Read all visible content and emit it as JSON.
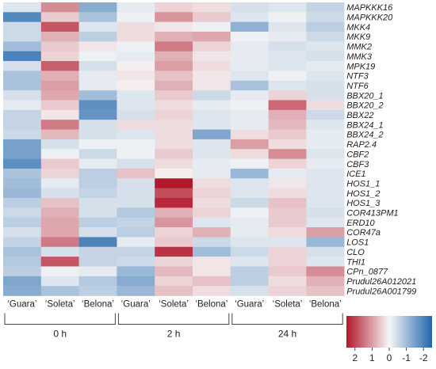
{
  "chart_data": {
    "type": "heatmap",
    "rows": [
      "MAPKKK16",
      "MAPKKK20",
      "MKK4",
      "MKK9",
      "MMK2",
      "MMK3",
      "MPK19",
      "NTF3",
      "NTF6",
      "BBX20_1",
      "BBX20_2",
      "BBX22",
      "BBX24_1",
      "BBX24_2",
      "RAP2.4",
      "CBF2",
      "CBF3",
      "ICE1",
      "HOS1_1",
      "HOS1_2",
      "HOS1_3",
      "COR413PM1",
      "ERD10",
      "COR47a",
      "LOS1",
      "CLO",
      "THI1",
      "CPn_0877",
      "Prudul26A012021",
      "Prudul26A001799"
    ],
    "columns": [
      "‘Guara’",
      "‘Soleta’",
      "‘Belona’",
      "‘Guara’",
      "‘Soleta’",
      "‘Belona’",
      "‘Guara’",
      "‘Soleta’",
      "‘Belona’"
    ],
    "groups": [
      {
        "label": "0 h",
        "start": 0,
        "end": 2
      },
      {
        "label": "2 h",
        "start": 3,
        "end": 5
      },
      {
        "label": "24 h",
        "start": 6,
        "end": 8
      }
    ],
    "values": [
      [
        -0.3,
        1.2,
        -1.3,
        -0.2,
        0.4,
        0.3,
        -0.4,
        -0.3,
        -0.6
      ],
      [
        -1.9,
        0.5,
        -0.9,
        -0.1,
        1.1,
        0.5,
        -0.3,
        -0.1,
        -0.5
      ],
      [
        -0.5,
        1.8,
        -0.3,
        0.3,
        0.2,
        -0.1,
        -1.2,
        -0.3,
        -0.7
      ],
      [
        -0.5,
        0.8,
        -0.7,
        0.3,
        0.8,
        0.9,
        -0.1,
        -0.2,
        -0.5
      ],
      [
        -1.0,
        0.5,
        0.2,
        -0.1,
        1.4,
        0.4,
        -0.2,
        -0.4,
        -0.3
      ],
      [
        -2.0,
        0.4,
        -0.1,
        -0.2,
        0.8,
        0.2,
        -0.2,
        -0.3,
        -0.4
      ],
      [
        -0.4,
        1.7,
        -0.4,
        0.1,
        1.0,
        0.3,
        -0.2,
        -0.3,
        -0.2
      ],
      [
        -0.9,
        0.8,
        -0.2,
        0.2,
        0.6,
        0.2,
        -0.3,
        -0.1,
        -0.3
      ],
      [
        -0.9,
        1.0,
        -0.2,
        0.1,
        0.8,
        0.2,
        -0.9,
        -0.3,
        -0.4
      ],
      [
        -0.4,
        0.9,
        -1.0,
        -0.3,
        0.5,
        -0.5,
        -0.2,
        0.4,
        -0.4
      ],
      [
        -0.2,
        0.5,
        -1.8,
        -0.3,
        0.3,
        -0.2,
        -0.1,
        1.6,
        0.3
      ],
      [
        -0.6,
        0.2,
        -1.7,
        -0.4,
        0.4,
        -0.3,
        -0.2,
        0.8,
        -0.5
      ],
      [
        -0.6,
        1.4,
        -0.4,
        0.3,
        0.3,
        -0.3,
        -0.2,
        0.7,
        -0.3
      ],
      [
        -0.5,
        0.7,
        -0.4,
        -0.3,
        0.3,
        -1.4,
        0.3,
        0.5,
        -0.2
      ],
      [
        -1.5,
        -0.4,
        -0.1,
        -0.1,
        0.3,
        -0.3,
        1.0,
        0.3,
        -0.2
      ],
      [
        -1.5,
        -0.1,
        -0.5,
        -0.1,
        0.5,
        -0.3,
        0.3,
        1.2,
        -0.3
      ],
      [
        -1.8,
        0.5,
        -0.2,
        -0.4,
        0.3,
        -0.2,
        -0.1,
        0.4,
        -0.2
      ],
      [
        -0.9,
        0.4,
        -0.7,
        0.6,
        0.1,
        -0.2,
        -1.1,
        -0.2,
        -0.3
      ],
      [
        -1.0,
        -0.2,
        -0.7,
        -0.4,
        2.5,
        0.3,
        -0.3,
        0.2,
        -0.3
      ],
      [
        -1.1,
        -0.4,
        -0.6,
        -0.4,
        1.9,
        0.4,
        -0.3,
        0.3,
        -0.3
      ],
      [
        -0.7,
        0.6,
        -0.4,
        -0.4,
        2.3,
        0.3,
        -0.5,
        0.6,
        -0.3
      ],
      [
        -0.5,
        0.8,
        -0.4,
        -0.8,
        0.8,
        0.4,
        -0.1,
        0.5,
        -0.4
      ],
      [
        -0.7,
        0.9,
        -0.7,
        -0.6,
        1.1,
        -0.3,
        -0.2,
        0.5,
        -0.3
      ],
      [
        -0.4,
        0.9,
        -0.4,
        -0.7,
        0.4,
        0.8,
        -0.2,
        0.3,
        1.0
      ],
      [
        -0.6,
        1.4,
        -2.0,
        -0.2,
        0.5,
        -0.5,
        -0.3,
        -0.3,
        -1.1
      ],
      [
        -0.9,
        -0.4,
        -0.6,
        -0.6,
        2.2,
        -1.0,
        -0.5,
        0.4,
        -0.4
      ],
      [
        -0.8,
        1.8,
        -0.6,
        -0.5,
        0.4,
        0.2,
        -0.3,
        0.4,
        -0.3
      ],
      [
        -0.7,
        -0.1,
        -0.2,
        -1.1,
        0.7,
        0.2,
        -0.7,
        0.5,
        1.2
      ],
      [
        -1.4,
        -0.3,
        -0.8,
        -1.3,
        0.4,
        0.6,
        -0.7,
        0.3,
        0.8
      ],
      [
        -1.3,
        -0.9,
        -0.7,
        -1.1,
        0.6,
        0.3,
        -0.4,
        0.4,
        0.6
      ]
    ],
    "color_scale": {
      "min": -2.5,
      "max": 2.5,
      "low_color": "#2166ac",
      "mid_color": "#f7f7f7",
      "high_color": "#b2182b",
      "ticks": [
        2,
        1,
        0,
        -1,
        -2
      ],
      "tick_labels": [
        "2",
        "1",
        "0",
        "-1",
        "-2"
      ]
    },
    "legend_position": "bottom-right"
  }
}
